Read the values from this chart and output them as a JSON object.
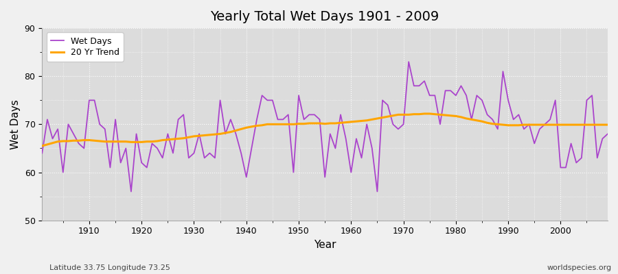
{
  "title": "Yearly Total Wet Days 1901 - 2009",
  "xlabel": "Year",
  "ylabel": "Wet Days",
  "subtitle_left": "Latitude 33.75 Longitude 73.25",
  "subtitle_right": "worldspecies.org",
  "ylim": [
    50,
    90
  ],
  "yticks": [
    50,
    60,
    70,
    80,
    90
  ],
  "line_color": "#AA44CC",
  "trend_color": "#FFA500",
  "plot_bg_color": "#DCDCDC",
  "fig_bg_color": "#F0F0F0",
  "grid_color": "#FFFFFF",
  "years": [
    1901,
    1902,
    1903,
    1904,
    1905,
    1906,
    1907,
    1908,
    1909,
    1910,
    1911,
    1912,
    1913,
    1914,
    1915,
    1916,
    1917,
    1918,
    1919,
    1920,
    1921,
    1922,
    1923,
    1924,
    1925,
    1926,
    1927,
    1928,
    1929,
    1930,
    1931,
    1932,
    1933,
    1934,
    1935,
    1936,
    1937,
    1938,
    1939,
    1940,
    1941,
    1942,
    1943,
    1944,
    1945,
    1946,
    1947,
    1948,
    1949,
    1950,
    1951,
    1952,
    1953,
    1954,
    1955,
    1956,
    1957,
    1958,
    1959,
    1960,
    1961,
    1962,
    1963,
    1964,
    1965,
    1966,
    1967,
    1968,
    1969,
    1970,
    1971,
    1972,
    1973,
    1974,
    1975,
    1976,
    1977,
    1978,
    1979,
    1980,
    1981,
    1982,
    1983,
    1984,
    1985,
    1986,
    1987,
    1988,
    1989,
    1990,
    1991,
    1992,
    1993,
    1994,
    1995,
    1996,
    1997,
    1998,
    1999,
    2000,
    2001,
    2002,
    2003,
    2004,
    2005,
    2006,
    2007,
    2008,
    2009
  ],
  "wet_days": [
    64,
    71,
    67,
    69,
    60,
    70,
    68,
    66,
    65,
    75,
    75,
    70,
    69,
    61,
    71,
    62,
    65,
    56,
    68,
    62,
    61,
    66,
    65,
    63,
    68,
    64,
    71,
    72,
    63,
    64,
    68,
    63,
    64,
    63,
    75,
    68,
    71,
    68,
    64,
    59,
    65,
    71,
    76,
    75,
    75,
    71,
    71,
    72,
    60,
    76,
    71,
    72,
    72,
    71,
    59,
    68,
    65,
    72,
    67,
    60,
    67,
    63,
    70,
    65,
    56,
    75,
    74,
    70,
    69,
    70,
    83,
    78,
    78,
    79,
    76,
    76,
    70,
    77,
    77,
    76,
    78,
    76,
    71,
    76,
    75,
    72,
    71,
    69,
    81,
    75,
    71,
    72,
    69,
    70,
    66,
    69,
    70,
    71,
    75,
    61,
    61,
    66,
    62,
    63,
    75,
    76,
    63,
    67,
    68
  ],
  "trend": [
    65.5,
    65.8,
    66.1,
    66.4,
    66.5,
    66.5,
    66.6,
    66.6,
    66.7,
    66.7,
    66.6,
    66.5,
    66.4,
    66.4,
    66.4,
    66.4,
    66.4,
    66.3,
    66.3,
    66.3,
    66.4,
    66.4,
    66.5,
    66.7,
    66.8,
    66.9,
    67.0,
    67.1,
    67.3,
    67.5,
    67.6,
    67.7,
    67.8,
    67.9,
    68.0,
    68.2,
    68.4,
    68.7,
    69.0,
    69.3,
    69.5,
    69.7,
    69.8,
    70.0,
    70.0,
    70.0,
    70.0,
    70.0,
    70.0,
    70.1,
    70.1,
    70.2,
    70.2,
    70.2,
    70.1,
    70.2,
    70.2,
    70.3,
    70.4,
    70.5,
    70.6,
    70.7,
    70.8,
    71.0,
    71.2,
    71.4,
    71.6,
    71.8,
    72.0,
    72.0,
    72.0,
    72.1,
    72.1,
    72.2,
    72.2,
    72.1,
    72.0,
    71.9,
    71.8,
    71.7,
    71.5,
    71.2,
    71.0,
    70.8,
    70.6,
    70.3,
    70.1,
    70.0,
    69.9,
    69.8,
    69.8,
    69.8,
    69.9,
    69.9,
    69.9,
    69.9,
    69.9,
    69.9,
    69.9,
    69.9,
    69.9,
    69.9,
    69.9,
    69.9,
    69.9,
    69.9,
    69.9,
    69.9,
    69.9
  ]
}
